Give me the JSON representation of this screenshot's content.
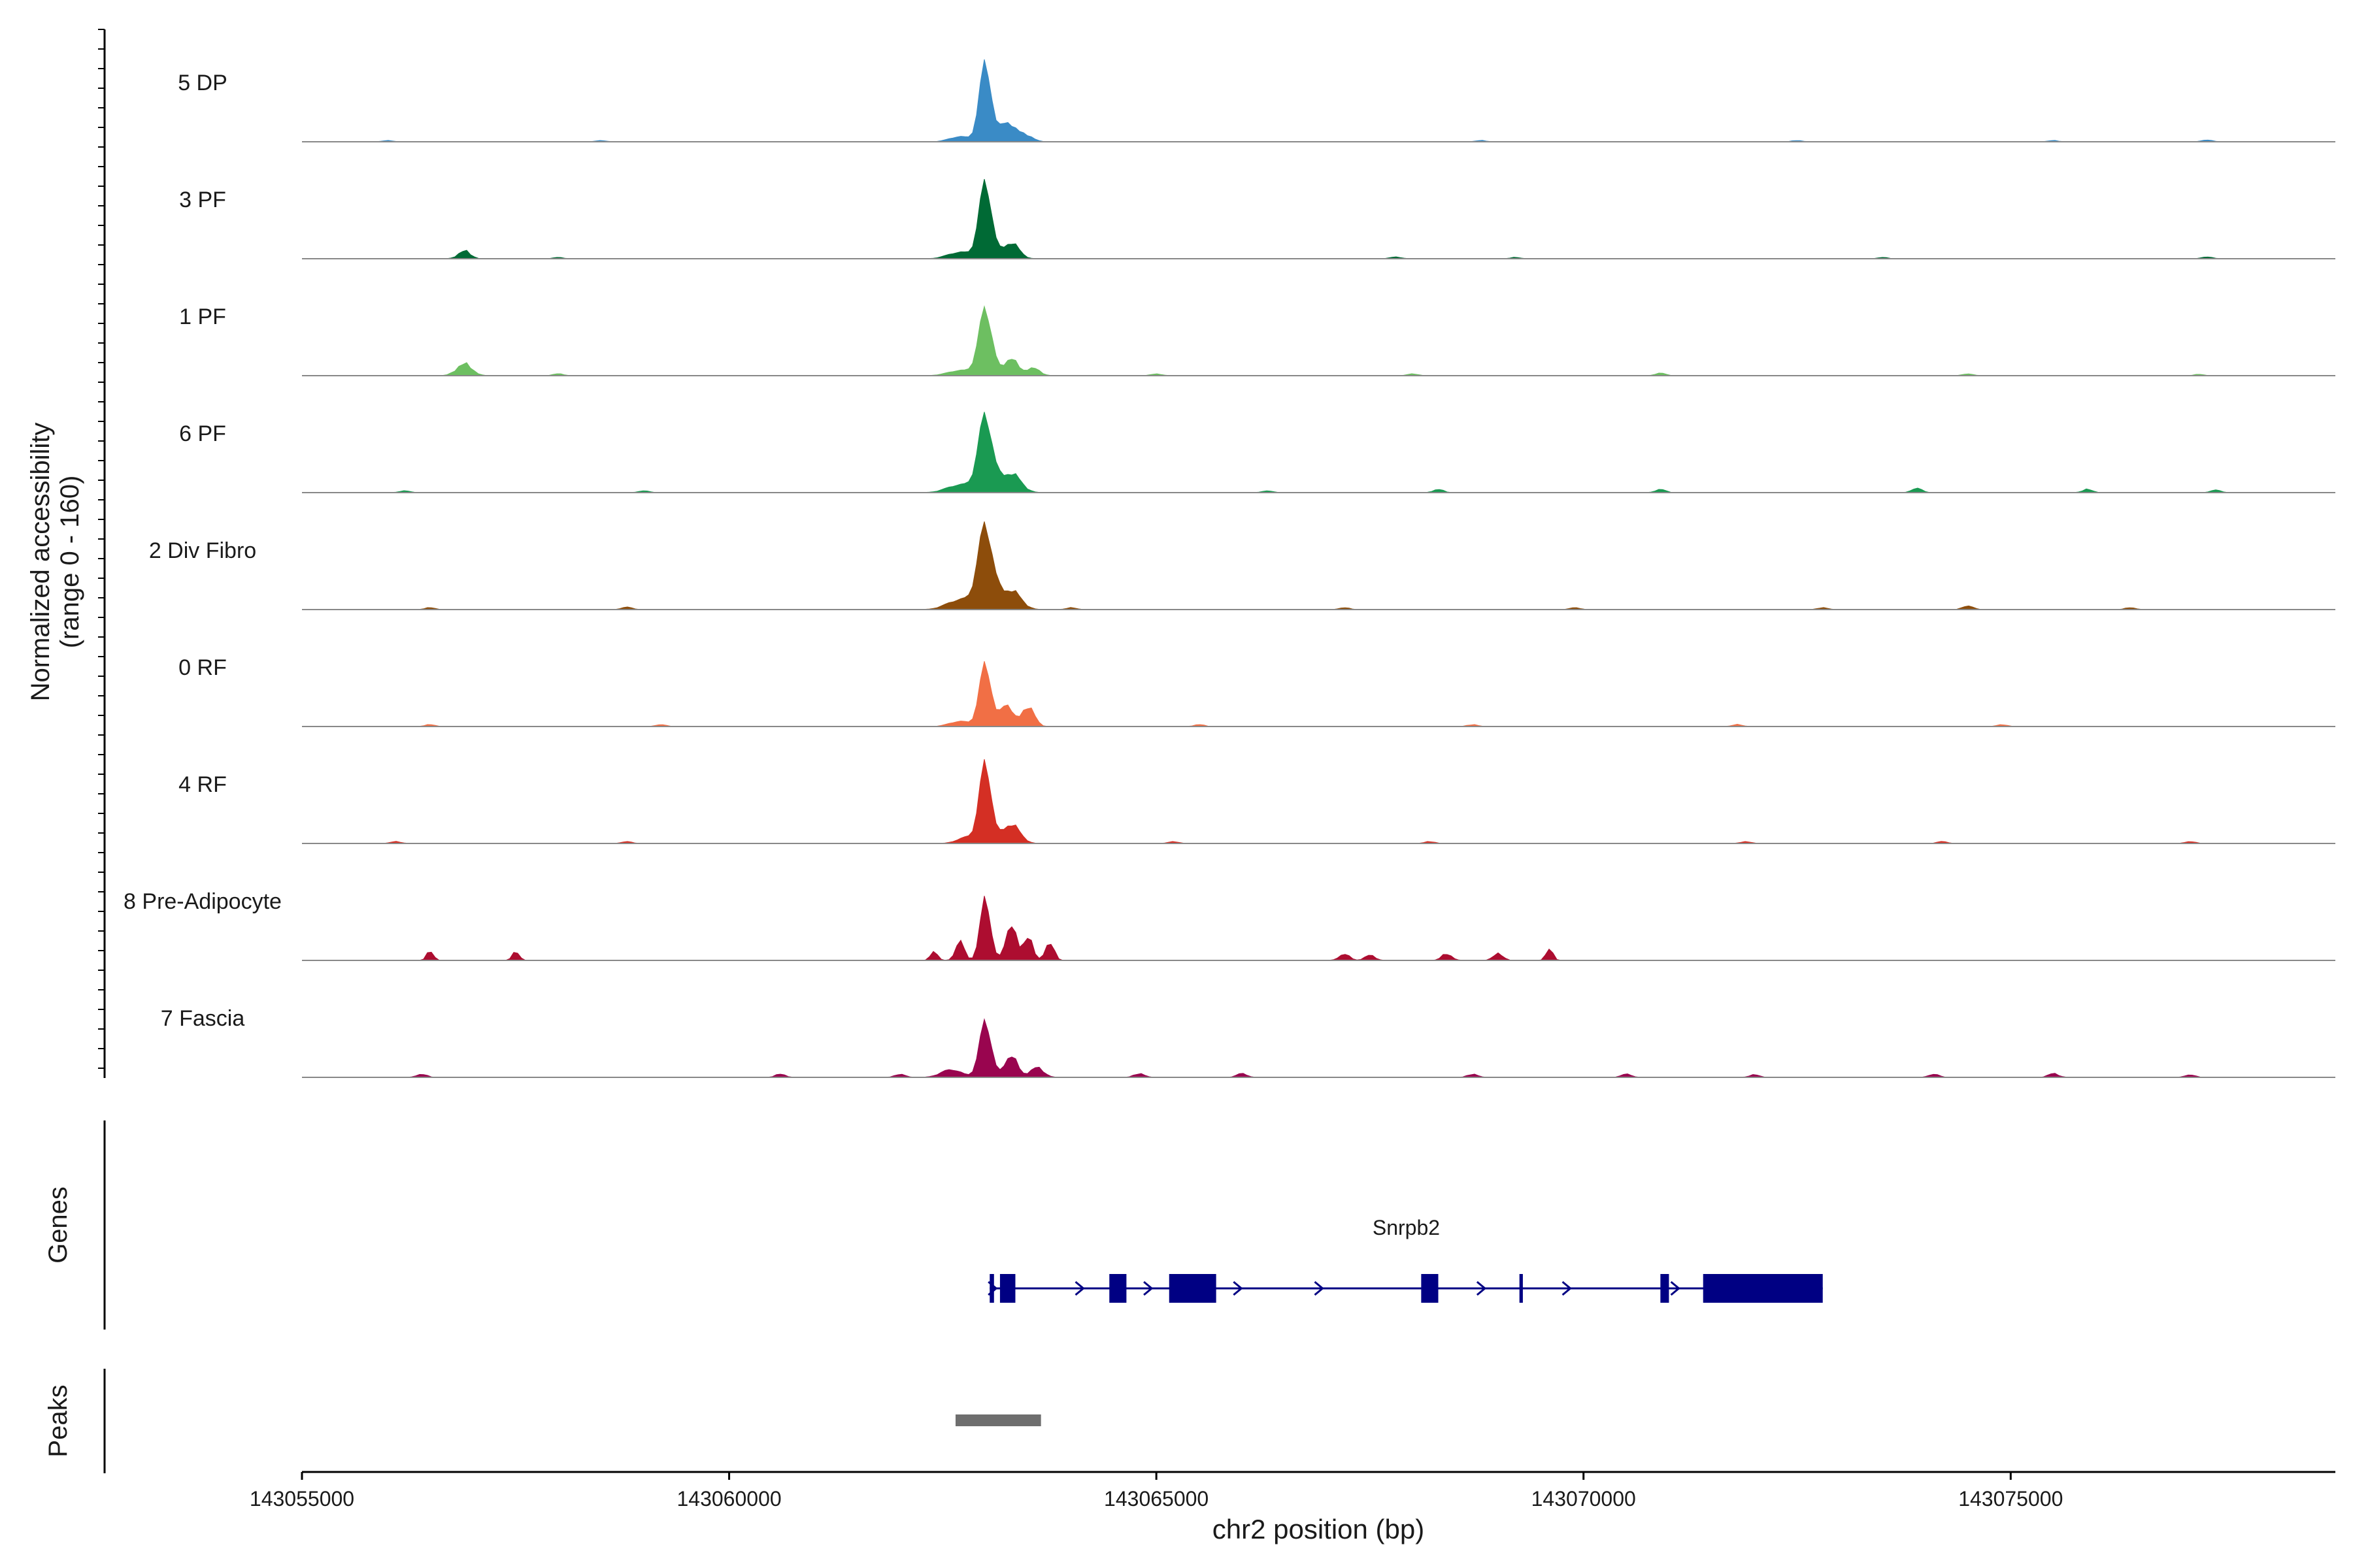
{
  "chart_data": {
    "type": "area",
    "title": "",
    "xlabel": "chr2 position (bp)",
    "ylabel_line1": "Normalized accessibility",
    "ylabel_line2": "(range 0 - 160)",
    "xlim": [
      143055000,
      143078800
    ],
    "ylim": [
      0,
      160
    ],
    "x_ticks": [
      {
        "value": 143055000,
        "label": "143055000"
      },
      {
        "value": 143060000,
        "label": "143060000"
      },
      {
        "value": 143065000,
        "label": "143065000"
      },
      {
        "value": 143070000,
        "label": "143070000"
      },
      {
        "value": 143075000,
        "label": "143075000"
      }
    ],
    "tracks": [
      {
        "name": "5 DP",
        "color": "#3a8bc6",
        "peaks": [
          [
            143063000,
            120,
            70
          ],
          [
            143063250,
            30,
            80
          ],
          [
            143063450,
            12,
            90
          ],
          [
            143062700,
            8,
            120
          ]
        ],
        "noise": [
          [
            143056000,
            2
          ],
          [
            143058500,
            2
          ],
          [
            143068800,
            2
          ],
          [
            143072500,
            2
          ],
          [
            143075500,
            2
          ],
          [
            143077300,
            3
          ]
        ]
      },
      {
        "name": "3 PF",
        "color": "#006a35",
        "peaks": [
          [
            143063000,
            115,
            75
          ],
          [
            143063300,
            25,
            90
          ],
          [
            143062700,
            10,
            140
          ],
          [
            143056900,
            12,
            70
          ]
        ],
        "noise": [
          [
            143058000,
            2
          ],
          [
            143067800,
            3
          ],
          [
            143069200,
            2
          ],
          [
            143073500,
            2
          ],
          [
            143077300,
            3
          ]
        ]
      },
      {
        "name": "1 PF",
        "color": "#6dbf61",
        "peaks": [
          [
            143063000,
            100,
            80
          ],
          [
            143063300,
            28,
            70
          ],
          [
            143063550,
            12,
            80
          ],
          [
            143062700,
            8,
            140
          ],
          [
            143056900,
            18,
            90
          ]
        ],
        "noise": [
          [
            143058000,
            3
          ],
          [
            143065000,
            3
          ],
          [
            143068000,
            3
          ],
          [
            143070900,
            4
          ],
          [
            143074500,
            3
          ],
          [
            143077200,
            2
          ]
        ]
      },
      {
        "name": "6 PF",
        "color": "#1a9a52",
        "peaks": [
          [
            143063000,
            115,
            85
          ],
          [
            143063300,
            30,
            110
          ],
          [
            143062700,
            12,
            150
          ]
        ],
        "noise": [
          [
            143056200,
            3
          ],
          [
            143059000,
            3
          ],
          [
            143066300,
            3
          ],
          [
            143068300,
            5
          ],
          [
            143070900,
            5
          ],
          [
            143073900,
            7
          ],
          [
            143075900,
            5
          ],
          [
            143077400,
            4
          ]
        ]
      },
      {
        "name": "2 Div Fibro",
        "color": "#8d4d0b",
        "peaks": [
          [
            143063000,
            125,
            90
          ],
          [
            143063300,
            30,
            110
          ],
          [
            143062700,
            15,
            150
          ]
        ],
        "noise": [
          [
            143056500,
            3
          ],
          [
            143058800,
            4
          ],
          [
            143064000,
            3
          ],
          [
            143067200,
            3
          ],
          [
            143069900,
            3
          ],
          [
            143072800,
            3
          ],
          [
            143074500,
            6
          ],
          [
            143076400,
            3
          ]
        ]
      },
      {
        "name": "0 RF",
        "color": "#f16f45",
        "peaks": [
          [
            143063000,
            95,
            70
          ],
          [
            143063250,
            35,
            70
          ],
          [
            143063500,
            32,
            70
          ],
          [
            143062700,
            8,
            120
          ]
        ],
        "noise": [
          [
            143056500,
            3
          ],
          [
            143059200,
            3
          ],
          [
            143065500,
            3
          ],
          [
            143068700,
            3
          ],
          [
            143071800,
            3
          ],
          [
            143074900,
            3
          ]
        ]
      },
      {
        "name": "4 RF",
        "color": "#d42f24",
        "peaks": [
          [
            143063000,
            120,
            70
          ],
          [
            143063300,
            30,
            100
          ],
          [
            143062800,
            10,
            120
          ]
        ],
        "noise": [
          [
            143056100,
            3
          ],
          [
            143058800,
            3
          ],
          [
            143065200,
            3
          ],
          [
            143068200,
            3
          ],
          [
            143071900,
            3
          ],
          [
            143074200,
            3
          ],
          [
            143077100,
            3
          ]
        ]
      },
      {
        "name": "8 Pre-Adipocyte",
        "color": "#ad0d30",
        "peaks": [
          [
            143063000,
            95,
            60
          ],
          [
            143063300,
            58,
            60
          ],
          [
            143063500,
            40,
            50
          ],
          [
            143063750,
            28,
            50
          ],
          [
            143062700,
            30,
            50
          ],
          [
            143062400,
            15,
            40
          ],
          [
            143056500,
            14,
            40
          ],
          [
            143057500,
            14,
            40
          ],
          [
            143069600,
            18,
            40
          ]
        ],
        "noise": [
          [
            143067200,
            10
          ],
          [
            143068400,
            10
          ],
          [
            143069000,
            10
          ],
          [
            143067500,
            8
          ]
        ]
      },
      {
        "name": "7 Fascia",
        "color": "#99054f",
        "peaks": [
          [
            143063000,
            85,
            70
          ],
          [
            143063300,
            35,
            70
          ],
          [
            143063600,
            15,
            80
          ],
          [
            143062600,
            12,
            120
          ]
        ],
        "noise": [
          [
            143056400,
            5
          ],
          [
            143060600,
            5
          ],
          [
            143062000,
            5
          ],
          [
            143064800,
            6
          ],
          [
            143066000,
            6
          ],
          [
            143068700,
            5
          ],
          [
            143070500,
            5
          ],
          [
            143072000,
            4
          ],
          [
            143074100,
            5
          ],
          [
            143075500,
            6
          ],
          [
            143077100,
            4
          ]
        ]
      }
    ],
    "genes_label": "Genes",
    "gene": {
      "name": "Snrpb2",
      "start": 143063050,
      "end": 143072800,
      "strand": "+",
      "color": "#000083",
      "exons": [
        [
          143063050,
          143063100
        ],
        [
          143063170,
          143063350
        ],
        [
          143064450,
          143064650
        ],
        [
          143065150,
          143065700
        ],
        [
          143068100,
          143068300
        ],
        [
          143069250,
          143069290
        ],
        [
          143070900,
          143071000
        ],
        [
          143071400,
          143072800
        ]
      ]
    },
    "peaks_label": "Peaks",
    "peak_regions": [
      {
        "start": 143062650,
        "end": 143063650,
        "color": "#6e6e6e"
      }
    ]
  }
}
